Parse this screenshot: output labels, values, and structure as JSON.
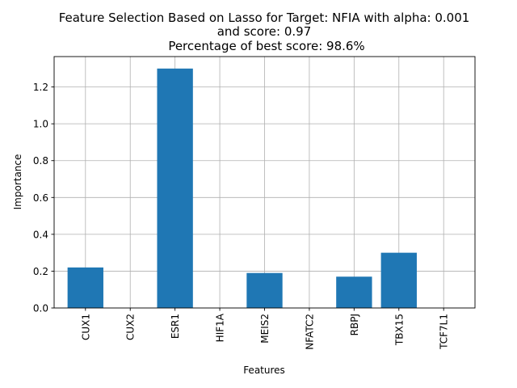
{
  "chart_data": {
    "type": "bar",
    "title_lines": [
      "Feature Selection Based on Lasso for Target: NFIA with alpha: 0.001",
      "and score: 0.97",
      "Percentage of best score: 98.6%"
    ],
    "xlabel": "Features",
    "ylabel": "Importance",
    "categories": [
      "CUX1",
      "CUX2",
      "ESR1",
      "HIF1A",
      "MEIS2",
      "NFATC2",
      "RBPJ",
      "TBX15",
      "TCF7L1"
    ],
    "values": [
      0.22,
      0.0,
      1.3,
      0.0,
      0.19,
      0.0,
      0.17,
      0.3,
      0.0
    ],
    "ylim": [
      0,
      1.365
    ],
    "yticks": [
      0.0,
      0.2,
      0.4,
      0.6,
      0.8,
      1.0,
      1.2
    ],
    "ytick_labels": [
      "0.0",
      "0.2",
      "0.4",
      "0.6",
      "0.8",
      "1.0",
      "1.2"
    ],
    "grid": true,
    "bar_color": "#1f77b4"
  }
}
